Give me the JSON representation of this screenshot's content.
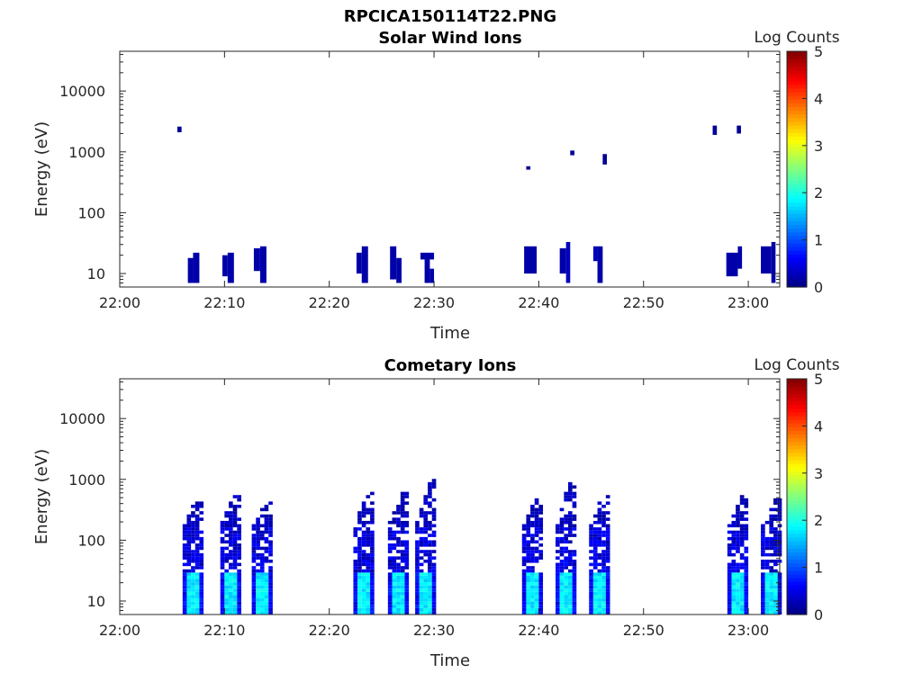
{
  "figure": {
    "title": "RPCICA150114T22.PNG"
  },
  "chart_data": [
    {
      "type": "heatmap",
      "title": "Solar Wind Ions",
      "xlabel": "Time",
      "ylabel": "Energy (eV)",
      "x_tick_labels": [
        "22:00",
        "22:10",
        "22:20",
        "22:30",
        "22:40",
        "22:50",
        "23:00"
      ],
      "x_range_minutes": [
        0,
        63
      ],
      "y_scale": "log",
      "y_tick_labels": [
        "10",
        "100",
        "1000",
        "10000"
      ],
      "y_range": [
        6,
        45000
      ],
      "colorbar": {
        "label": "Log Counts",
        "range": [
          0,
          5
        ],
        "tick_labels": [
          "0",
          "1",
          "2",
          "3",
          "4",
          "5"
        ],
        "colormap": "jet"
      },
      "cells": [
        {
          "t0": 5.5,
          "t1": 5.9,
          "e0": 2100,
          "e1": 2600,
          "v": 0.1
        },
        {
          "t0": 6.5,
          "t1": 7.0,
          "e0": 7,
          "e1": 18,
          "v": 0.2
        },
        {
          "t0": 7.0,
          "t1": 7.6,
          "e0": 7,
          "e1": 22,
          "v": 0.2
        },
        {
          "t0": 9.8,
          "t1": 10.3,
          "e0": 9,
          "e1": 20,
          "v": 0.2
        },
        {
          "t0": 10.3,
          "t1": 10.9,
          "e0": 7,
          "e1": 22,
          "v": 0.2
        },
        {
          "t0": 12.8,
          "t1": 13.4,
          "e0": 11,
          "e1": 26,
          "v": 0.2
        },
        {
          "t0": 13.4,
          "t1": 14.0,
          "e0": 7,
          "e1": 28,
          "v": 0.2
        },
        {
          "t0": 22.6,
          "t1": 23.1,
          "e0": 10,
          "e1": 22,
          "v": 0.2
        },
        {
          "t0": 23.1,
          "t1": 23.7,
          "e0": 7,
          "e1": 28,
          "v": 0.2
        },
        {
          "t0": 25.8,
          "t1": 26.4,
          "e0": 8,
          "e1": 28,
          "v": 0.2
        },
        {
          "t0": 26.4,
          "t1": 26.9,
          "e0": 7,
          "e1": 18,
          "v": 0.2
        },
        {
          "t0": 28.7,
          "t1": 30.0,
          "e0": 17,
          "e1": 22,
          "v": 0.2
        },
        {
          "t0": 29.1,
          "t1": 29.6,
          "e0": 7,
          "e1": 17,
          "v": 0.2
        },
        {
          "t0": 29.6,
          "t1": 30.0,
          "e0": 7,
          "e1": 12,
          "v": 0.2
        },
        {
          "t0": 38.8,
          "t1": 39.2,
          "e0": 510,
          "e1": 580,
          "v": 0.1
        },
        {
          "t0": 38.6,
          "t1": 39.8,
          "e0": 10,
          "e1": 28,
          "v": 0.2
        },
        {
          "t0": 42.0,
          "t1": 42.6,
          "e0": 10,
          "e1": 26,
          "v": 0.2
        },
        {
          "t0": 42.6,
          "t1": 43.0,
          "e0": 7,
          "e1": 33,
          "v": 0.3
        },
        {
          "t0": 43.0,
          "t1": 43.4,
          "e0": 880,
          "e1": 1050,
          "v": 0.1
        },
        {
          "t0": 45.2,
          "t1": 45.6,
          "e0": 16,
          "e1": 28,
          "v": 0.3
        },
        {
          "t0": 45.6,
          "t1": 46.1,
          "e0": 7,
          "e1": 28,
          "v": 0.2
        },
        {
          "t0": 46.1,
          "t1": 46.5,
          "e0": 620,
          "e1": 920,
          "v": 0.1
        },
        {
          "t0": 56.6,
          "t1": 57.0,
          "e0": 1900,
          "e1": 2700,
          "v": 0.1
        },
        {
          "t0": 58.9,
          "t1": 59.3,
          "e0": 2000,
          "e1": 2700,
          "v": 0.1
        },
        {
          "t0": 57.9,
          "t1": 59.0,
          "e0": 9,
          "e1": 22,
          "v": 0.2
        },
        {
          "t0": 59.0,
          "t1": 59.4,
          "e0": 12,
          "e1": 28,
          "v": 0.2
        },
        {
          "t0": 61.2,
          "t1": 62.2,
          "e0": 10,
          "e1": 28,
          "v": 0.2
        },
        {
          "t0": 62.2,
          "t1": 62.6,
          "e0": 7,
          "e1": 33,
          "v": 0.2
        }
      ]
    },
    {
      "type": "heatmap",
      "title": "Cometary Ions",
      "xlabel": "Time",
      "ylabel": "Energy (eV)",
      "x_tick_labels": [
        "22:00",
        "22:10",
        "22:20",
        "22:30",
        "22:40",
        "22:50",
        "23:00"
      ],
      "x_range_minutes": [
        0,
        63
      ],
      "y_scale": "log",
      "y_tick_labels": [
        "10",
        "100",
        "1000",
        "10000"
      ],
      "y_range": [
        6,
        45000
      ],
      "colorbar": {
        "label": "Log Counts",
        "range": [
          0,
          5
        ],
        "tick_labels": [
          "0",
          "1",
          "2",
          "3",
          "4",
          "5"
        ],
        "colormap": "jet"
      },
      "bursts": [
        {
          "t": 7.0,
          "emax": 450
        },
        {
          "t": 10.6,
          "emax": 520
        },
        {
          "t": 13.6,
          "emax": 420
        },
        {
          "t": 23.3,
          "emax": 600
        },
        {
          "t": 26.6,
          "emax": 560
        },
        {
          "t": 29.2,
          "emax": 950
        },
        {
          "t": 39.4,
          "emax": 480
        },
        {
          "t": 42.6,
          "emax": 850
        },
        {
          "t": 45.8,
          "emax": 520
        },
        {
          "t": 59.0,
          "emax": 500
        },
        {
          "t": 62.2,
          "emax": 440
        }
      ]
    }
  ]
}
